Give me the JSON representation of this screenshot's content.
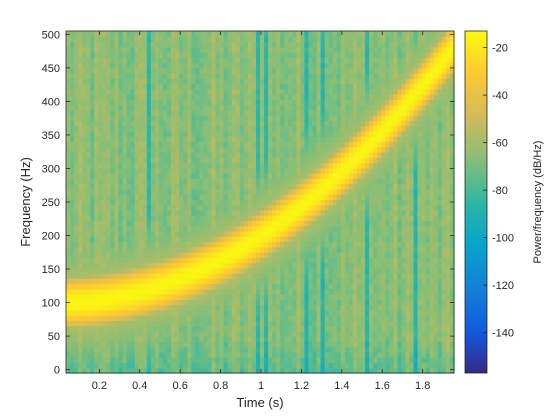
{
  "chart_data": {
    "type": "heatmap",
    "plot_kind": "spectrogram",
    "title": "",
    "xlabel": "Time (s)",
    "ylabel": "Frequency (Hz)",
    "colorbar_label": "Power/frequency (dB/Hz)",
    "xlim": [
      0.035,
      1.955
    ],
    "ylim": [
      -5,
      505
    ],
    "x_ticks": [
      0.2,
      0.4,
      0.6,
      0.8,
      1,
      1.2,
      1.4,
      1.6,
      1.8
    ],
    "x_tick_labels": [
      "0.2",
      "0.4",
      "0.6",
      "0.8",
      "1",
      "1.2",
      "1.4",
      "1.6",
      "1.8"
    ],
    "y_ticks": [
      0,
      50,
      100,
      150,
      200,
      250,
      300,
      350,
      400,
      450,
      500
    ],
    "y_tick_labels": [
      "0",
      "50",
      "100",
      "150",
      "200",
      "250",
      "300",
      "350",
      "400",
      "450",
      "500"
    ],
    "clim": [
      -157,
      -13
    ],
    "colorbar_ticks": [
      -20,
      -40,
      -60,
      -80,
      -100,
      -120,
      -140
    ],
    "colorbar_tick_labels": [
      "-20",
      "-40",
      "-60",
      "-80",
      "-100",
      "-120",
      "-140"
    ],
    "colormap": "parula",
    "colormap_stops": [
      "#352a87",
      "#0f5cdd",
      "#1481d6",
      "#06a4ca",
      "#2eb7a4",
      "#87bf77",
      "#d1bb59",
      "#fec832",
      "#f9fb0e"
    ],
    "signal": {
      "kind": "quadratic chirp",
      "f0_hz": 100,
      "f_at_1s_hz": 200,
      "f_end_hz": 500,
      "t_end_s": 2,
      "peak_db": -15,
      "background_db_range": [
        -105,
        -58
      ],
      "background_db_mean": -67
    },
    "grid": false
  },
  "colors": {
    "axis": "#262626",
    "background": "#ffffff"
  }
}
